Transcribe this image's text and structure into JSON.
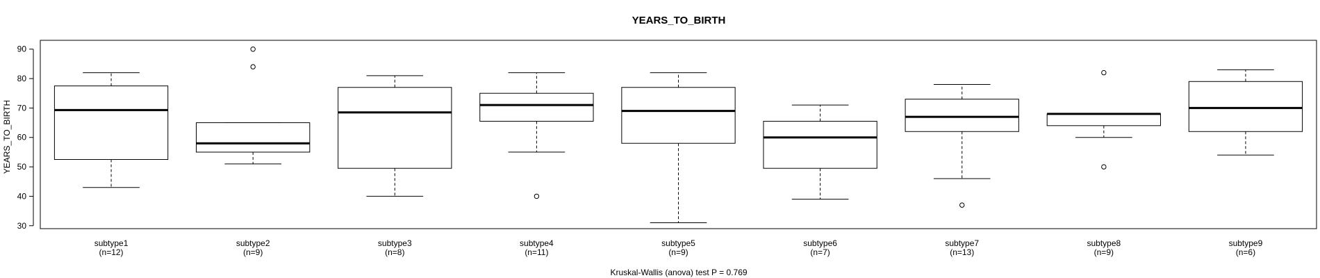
{
  "chart_data": {
    "type": "box",
    "title": "YEARS_TO_BIRTH",
    "ylabel": "YEARS_TO_BIRTH",
    "xlabel": "",
    "footer": "Kruskal-Wallis (anova) test P = 0.769",
    "ylim": [
      29,
      93
    ],
    "yticks": [
      30,
      40,
      50,
      60,
      70,
      80,
      90
    ],
    "ytick_labels": [
      "30",
      "40",
      "50",
      "60",
      "70",
      "80",
      "90"
    ],
    "grid": false,
    "categories": [
      "subtype1",
      "subtype2",
      "subtype3",
      "subtype4",
      "subtype5",
      "subtype6",
      "subtype7",
      "subtype8",
      "subtype9"
    ],
    "counts": [
      "(n=12)",
      "(n=9)",
      "(n=8)",
      "(n=11)",
      "(n=9)",
      "(n=7)",
      "(n=13)",
      "(n=9)",
      "(n=6)"
    ],
    "boxes": [
      {
        "whisker_low": 43,
        "q1": 52.5,
        "median": 69.3,
        "q3": 77.5,
        "whisker_high": 82,
        "outliers": []
      },
      {
        "whisker_low": 51,
        "q1": 55,
        "median": 58,
        "q3": 65,
        "whisker_high": 65,
        "outliers": [
          84,
          90
        ]
      },
      {
        "whisker_low": 40,
        "q1": 49.5,
        "median": 68.5,
        "q3": 77,
        "whisker_high": 81,
        "outliers": []
      },
      {
        "whisker_low": 55,
        "q1": 65.5,
        "median": 71,
        "q3": 75,
        "whisker_high": 82,
        "outliers": [
          40
        ]
      },
      {
        "whisker_low": 31,
        "q1": 58,
        "median": 69,
        "q3": 77,
        "whisker_high": 82,
        "outliers": []
      },
      {
        "whisker_low": 39,
        "q1": 49.5,
        "median": 60,
        "q3": 65.5,
        "whisker_high": 71,
        "outliers": []
      },
      {
        "whisker_low": 46,
        "q1": 62,
        "median": 67,
        "q3": 73,
        "whisker_high": 78,
        "outliers": [
          37
        ]
      },
      {
        "whisker_low": 60,
        "q1": 64,
        "median": 68,
        "q3": 68,
        "whisker_high": 68,
        "outliers": [
          50,
          82
        ]
      },
      {
        "whisker_low": 54,
        "q1": 62,
        "median": 70,
        "q3": 79,
        "whisker_high": 83,
        "outliers": []
      }
    ]
  }
}
